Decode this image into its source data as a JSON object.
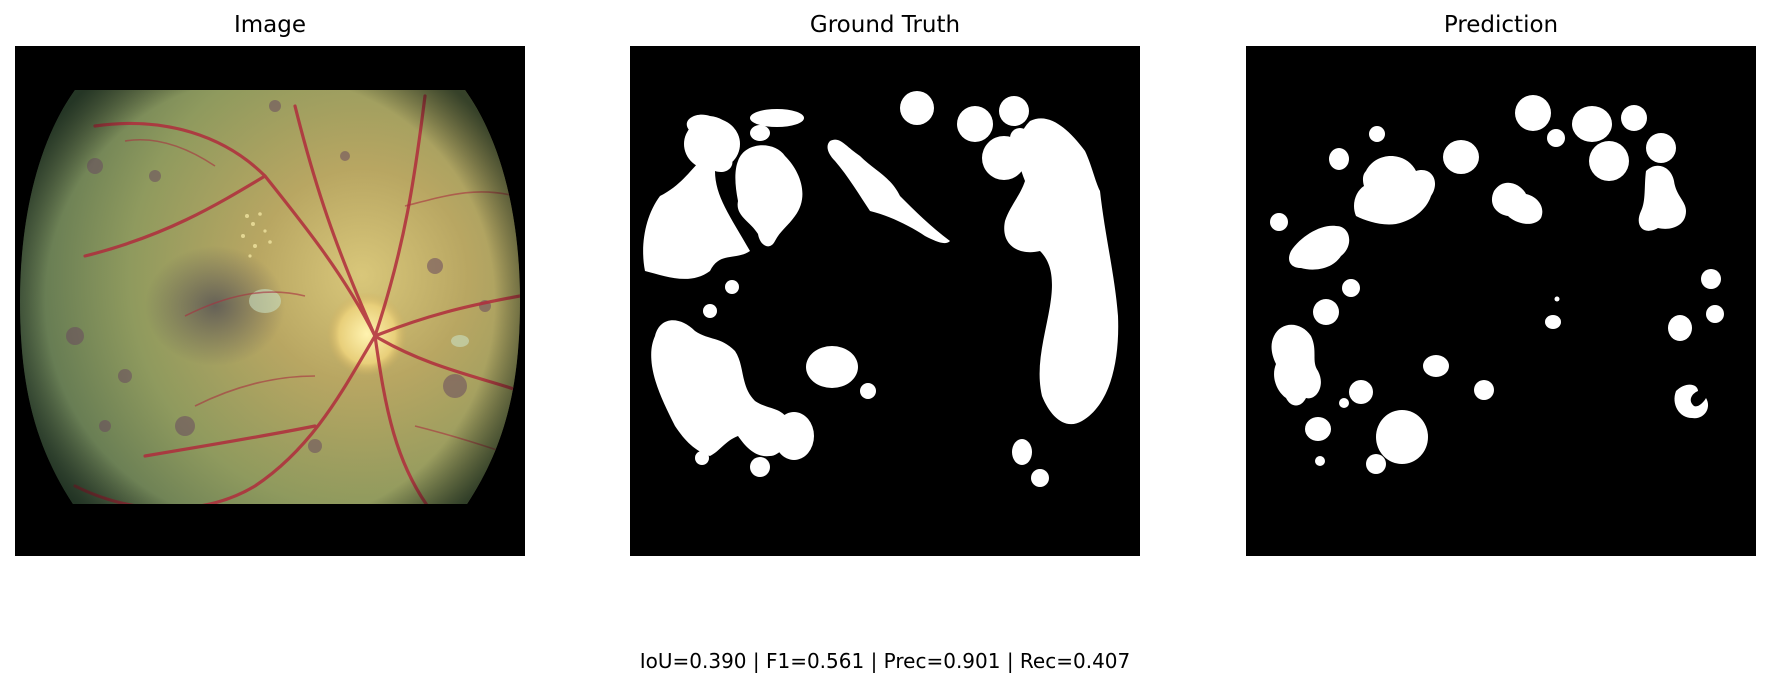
{
  "figure": {
    "panels": [
      {
        "title": "Image"
      },
      {
        "title": "Ground Truth"
      },
      {
        "title": "Prediction"
      }
    ],
    "metrics_text": "IoU=0.390 | F1=0.561 | Prec=0.901 | Rec=0.407"
  },
  "colors": {
    "background": "#000000",
    "mask_fg": "#ffffff",
    "fundus_base": "#8a9a58",
    "vessel": "#b03040",
    "optic_disc": "#f4e49a"
  }
}
